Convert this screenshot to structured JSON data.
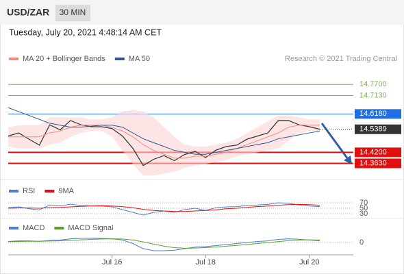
{
  "header": {
    "symbol": "USD/ZAR",
    "interval": "30 MIN",
    "timestamp": "Tuesday, July 20, 2021 4:48:14 AM CET"
  },
  "chart_data": [
    {
      "type": "line",
      "credit": "Research © 2021 Trading Central",
      "categories": [
        null,
        null,
        null,
        null,
        null,
        null,
        null,
        null,
        null,
        null,
        "Jul 16",
        null,
        null,
        null,
        null,
        null,
        null,
        null,
        null,
        "Jul 18",
        null,
        null,
        null,
        null,
        null,
        null,
        null,
        null,
        null,
        "Jul 20",
        null
      ],
      "price": {
        "color": "#3a3a3a",
        "values": [
          14.504,
          14.52,
          14.488,
          14.457,
          14.562,
          14.536,
          14.584,
          14.562,
          14.552,
          14.552,
          14.543,
          14.504,
          14.441,
          14.352,
          14.384,
          14.403,
          14.377,
          14.409,
          14.425,
          14.393,
          14.431,
          14.45,
          14.457,
          14.488,
          14.504,
          14.52,
          14.584,
          14.584,
          14.562,
          14.552,
          14.539
        ]
      },
      "series": [
        {
          "name": "MA 20 + Bollinger Bands",
          "color": "#f28b82",
          "values": [
            14.5,
            14.5,
            14.5,
            14.5,
            14.52,
            14.53,
            14.55,
            14.56,
            14.56,
            14.56,
            14.55,
            14.53,
            14.5,
            14.46,
            14.43,
            14.41,
            14.39,
            14.39,
            14.4,
            14.4,
            14.41,
            14.42,
            14.44,
            14.46,
            14.48,
            14.5,
            14.52,
            14.55,
            14.56,
            14.56,
            14.56
          ],
          "upper": [
            14.55,
            14.56,
            14.56,
            14.56,
            14.6,
            14.6,
            14.6,
            14.6,
            14.59,
            14.59,
            14.6,
            14.63,
            14.64,
            14.63,
            14.6,
            14.55,
            14.5,
            14.46,
            14.45,
            14.45,
            14.46,
            14.47,
            14.49,
            14.52,
            14.55,
            14.58,
            14.61,
            14.61,
            14.6,
            14.59,
            14.59
          ],
          "lower": [
            14.45,
            14.44,
            14.44,
            14.44,
            14.46,
            14.47,
            14.5,
            14.52,
            14.53,
            14.53,
            14.5,
            14.43,
            14.36,
            14.3,
            14.3,
            14.31,
            14.32,
            14.34,
            14.35,
            14.36,
            14.37,
            14.38,
            14.4,
            14.41,
            14.42,
            14.43,
            14.44,
            14.48,
            14.52,
            14.53,
            14.53
          ]
        },
        {
          "name": "MA 50",
          "color": "#2f5597",
          "values": [
            14.65,
            14.63,
            14.61,
            14.59,
            14.57,
            14.56,
            14.55,
            14.55,
            14.555,
            14.56,
            14.56,
            14.55,
            14.52,
            14.49,
            14.47,
            14.45,
            14.43,
            14.42,
            14.41,
            14.41,
            14.42,
            14.43,
            14.44,
            14.45,
            14.46,
            14.47,
            14.49,
            14.5,
            14.51,
            14.52,
            14.53
          ]
        }
      ],
      "levels": [
        {
          "value": 14.77,
          "label": "14.7700",
          "color": "#7ab648",
          "style": "line"
        },
        {
          "value": 14.713,
          "label": "14.7130",
          "color": "#7ab648",
          "style": "line"
        },
        {
          "value": 14.618,
          "label": "14.6180",
          "color": "#1f6fe0",
          "style": "box"
        },
        {
          "value": 14.5389,
          "label": "14.5389",
          "color": "#333333",
          "style": "dotted"
        },
        {
          "value": 14.42,
          "label": "14.4200",
          "color": "#e01010",
          "style": "box"
        },
        {
          "value": 14.363,
          "label": "14.3630",
          "color": "#e01010",
          "style": "box"
        }
      ],
      "ylim": [
        14.28,
        14.87
      ]
    },
    {
      "type": "line",
      "series": [
        {
          "name": "RSI",
          "color": "#4a7fd4",
          "values": [
            52,
            55,
            48,
            44,
            62,
            58,
            65,
            60,
            58,
            58,
            55,
            45,
            35,
            25,
            35,
            40,
            35,
            45,
            50,
            42,
            52,
            55,
            56,
            60,
            62,
            64,
            70,
            68,
            62,
            58,
            56
          ]
        },
        {
          "name": "9MA",
          "color": "#e01010",
          "values": [
            50,
            51,
            51,
            50,
            52,
            53,
            55,
            57,
            58,
            59,
            58,
            56,
            52,
            46,
            42,
            40,
            38,
            38,
            40,
            42,
            44,
            48,
            50,
            53,
            56,
            58,
            61,
            63,
            64,
            63,
            61
          ]
        }
      ],
      "ylim": [
        15,
        90
      ],
      "yticks": [
        70,
        50,
        30
      ]
    },
    {
      "type": "line",
      "series": [
        {
          "name": "MACD",
          "color": "#4a7fd4",
          "values": [
            0.005,
            0.008,
            0.008,
            0.006,
            0.01,
            0.012,
            0.018,
            0.02,
            0.021,
            0.02,
            0.018,
            0.012,
            -0.005,
            -0.03,
            -0.04,
            -0.04,
            -0.038,
            -0.03,
            -0.022,
            -0.02,
            -0.015,
            -0.01,
            -0.005,
            0,
            0.005,
            0.008,
            0.015,
            0.018,
            0.016,
            0.012,
            0.008
          ]
        },
        {
          "name": "MACD Signal",
          "color": "#5aa02c",
          "values": [
            0.004,
            0.005,
            0.006,
            0.006,
            0.007,
            0.008,
            0.01,
            0.013,
            0.015,
            0.017,
            0.018,
            0.017,
            0.012,
            0.003,
            -0.008,
            -0.018,
            -0.025,
            -0.028,
            -0.027,
            -0.025,
            -0.022,
            -0.018,
            -0.014,
            -0.01,
            -0.005,
            0,
            0.004,
            0.009,
            0.012,
            0.013,
            0.012
          ]
        }
      ],
      "ylim": [
        -0.06,
        0.04
      ],
      "yticks": [
        0
      ]
    }
  ]
}
